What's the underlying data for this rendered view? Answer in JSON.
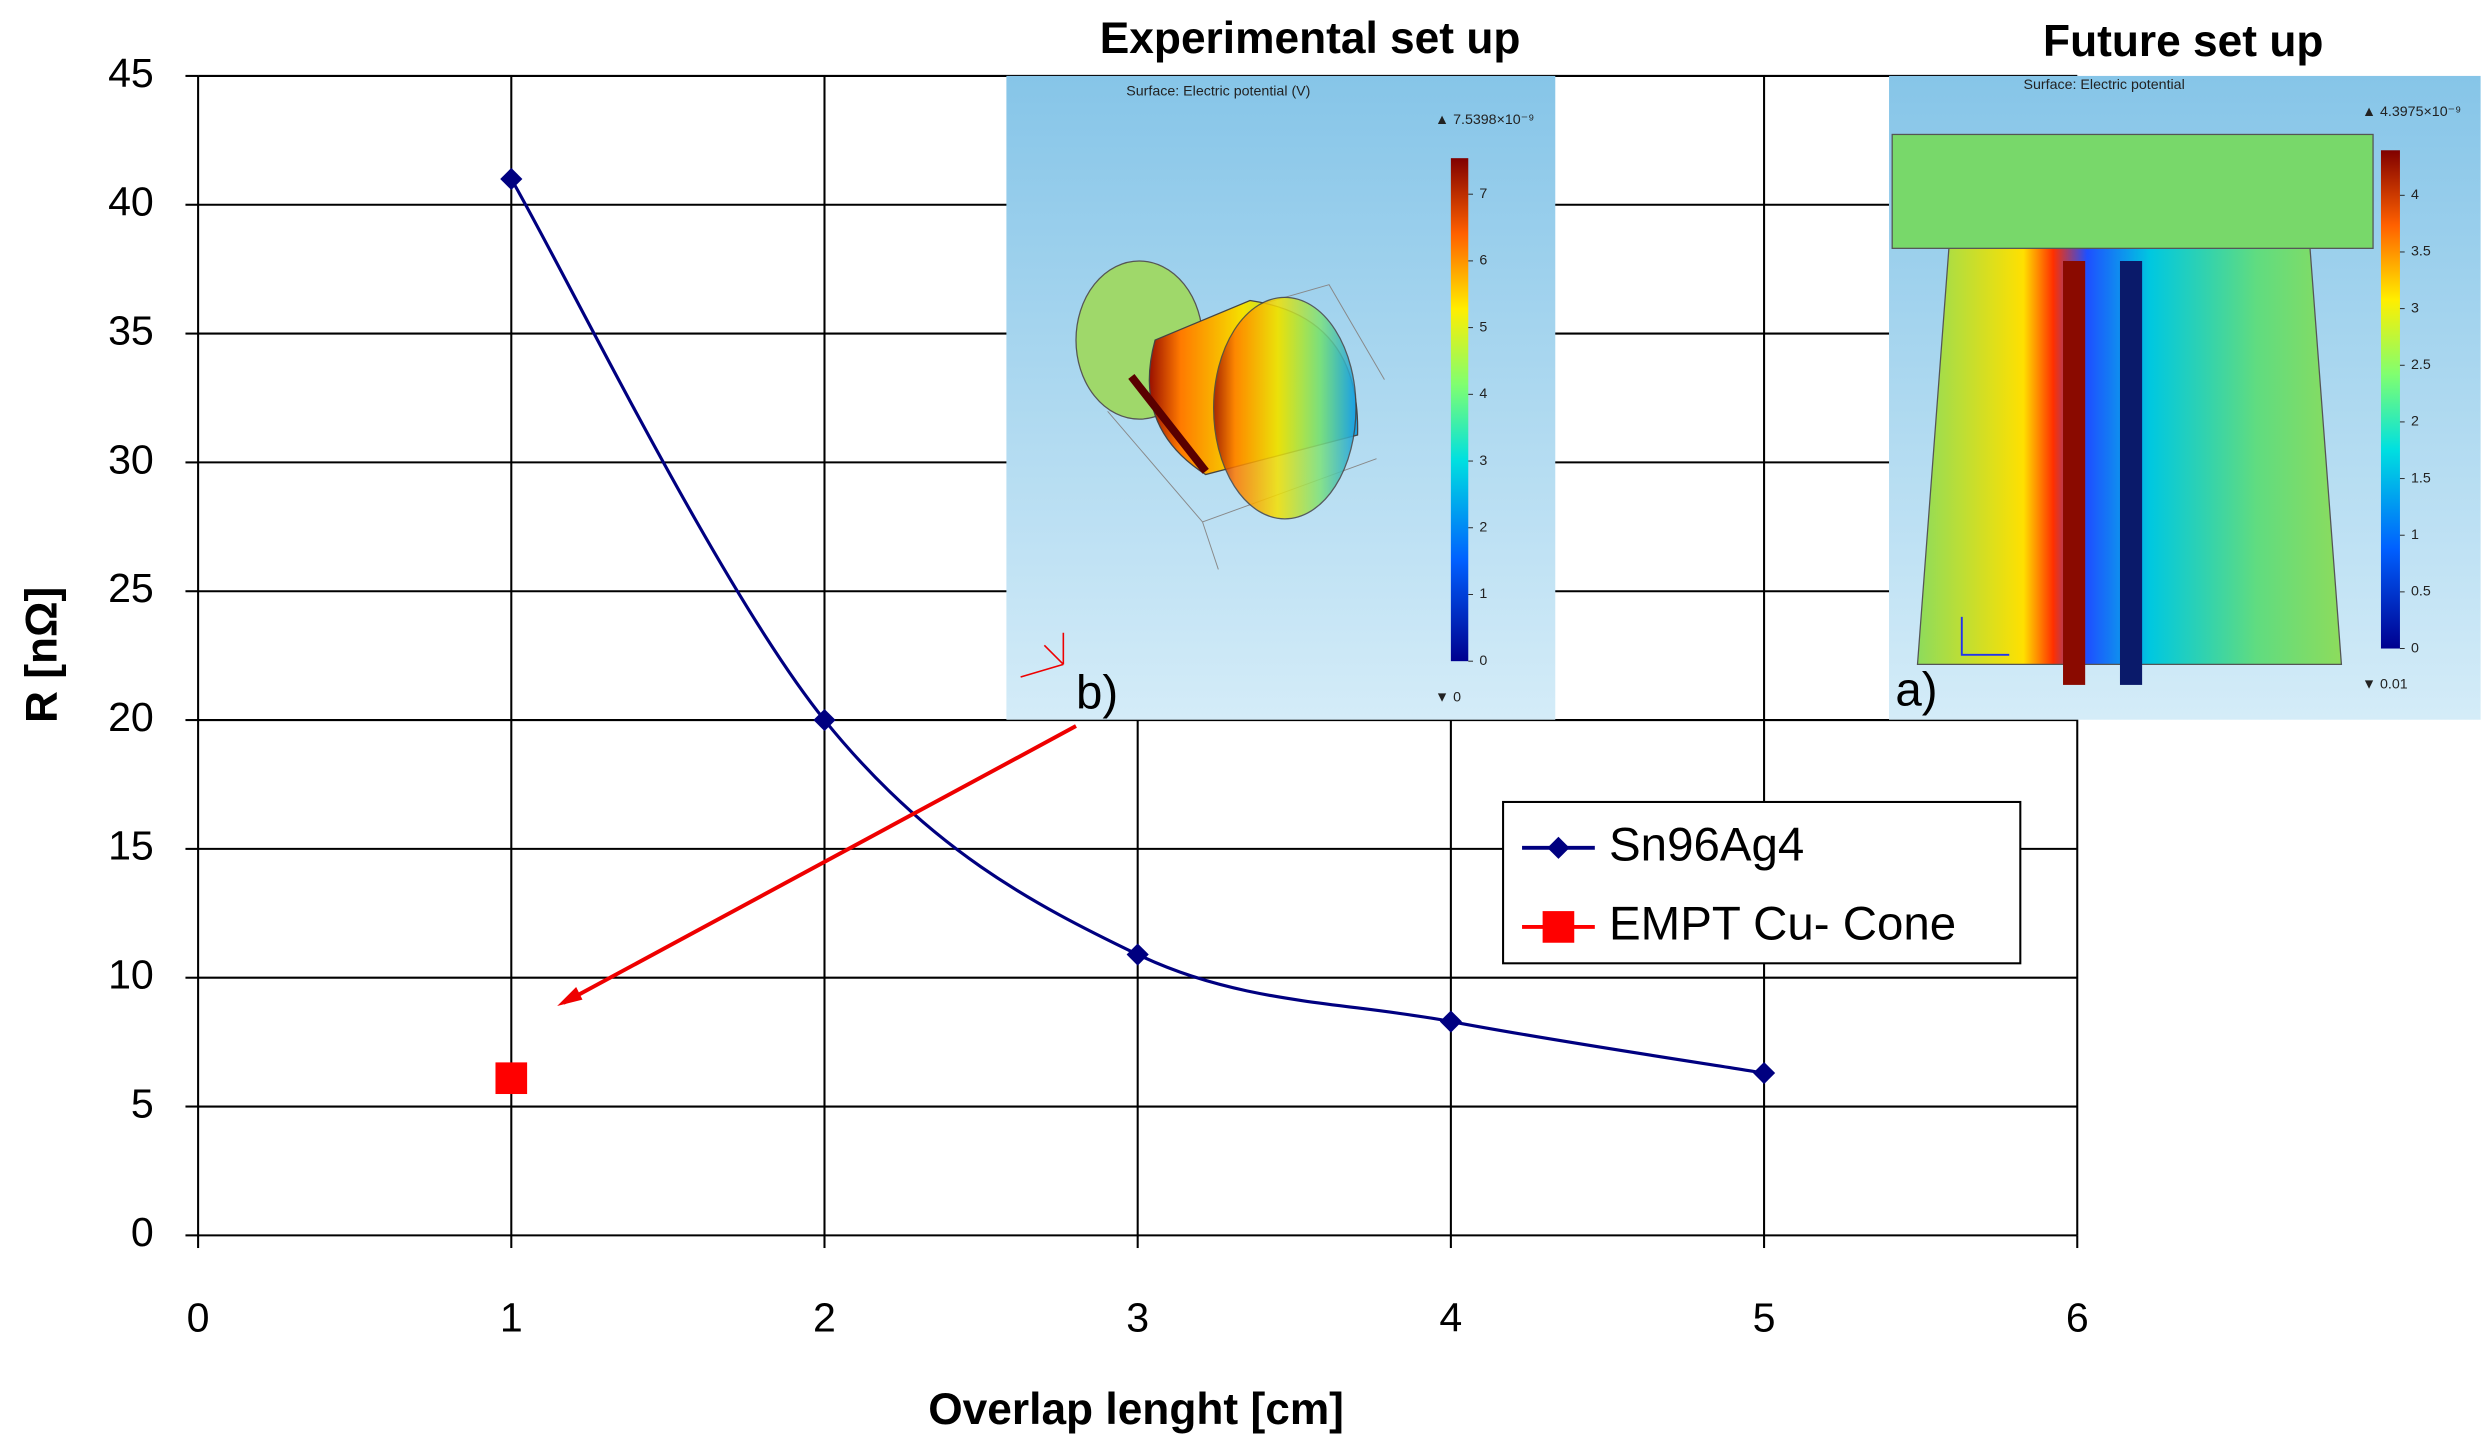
{
  "chart_data": {
    "type": "line",
    "x_label": "Overlap lenght [cm]",
    "y_label": "R [nΩ]",
    "x": [
      1,
      2,
      3,
      4,
      5
    ],
    "series": [
      {
        "name": "Sn96Ag4",
        "color": "#000080",
        "marker": "diamond",
        "x": [
          1,
          2,
          3,
          4,
          5
        ],
        "values": [
          41,
          20,
          10.9,
          8.3,
          6.3
        ]
      },
      {
        "name": "EMPT Cu- Cone",
        "color": "#ff0000",
        "marker": "square",
        "x": [
          1
        ],
        "values": [
          6.1
        ]
      }
    ],
    "xlim": [
      0,
      6
    ],
    "xticks": [
      0,
      1,
      2,
      3,
      4,
      5,
      6
    ],
    "ylim": [
      0,
      45
    ],
    "yticks": [
      0,
      5,
      10,
      15,
      20,
      25,
      30,
      35,
      40,
      45
    ],
    "grid": true,
    "legend": "center-right",
    "annotations": [
      "Experimental set up",
      "Future set up",
      "b)",
      "a)"
    ],
    "insets": [
      {
        "title": "Surface: Electric potential (V)",
        "max_label": "▲ 7.5398×10⁻⁹",
        "min_label": "▼ 0",
        "colorbar_lim": [
          0,
          7.5398
        ],
        "colorbar_ticks": [
          0,
          1,
          2,
          3,
          4,
          5,
          6,
          7
        ]
      },
      {
        "title": "Surface: Electric potential",
        "max_label": "▲ 4.3975×10⁻⁹",
        "min_label": "▼ 0.01",
        "colorbar_lim": [
          0,
          4.3975
        ],
        "colorbar_ticks": [
          0,
          0.5,
          1,
          1.5,
          2,
          2.5,
          3,
          3.5,
          4
        ]
      }
    ]
  }
}
